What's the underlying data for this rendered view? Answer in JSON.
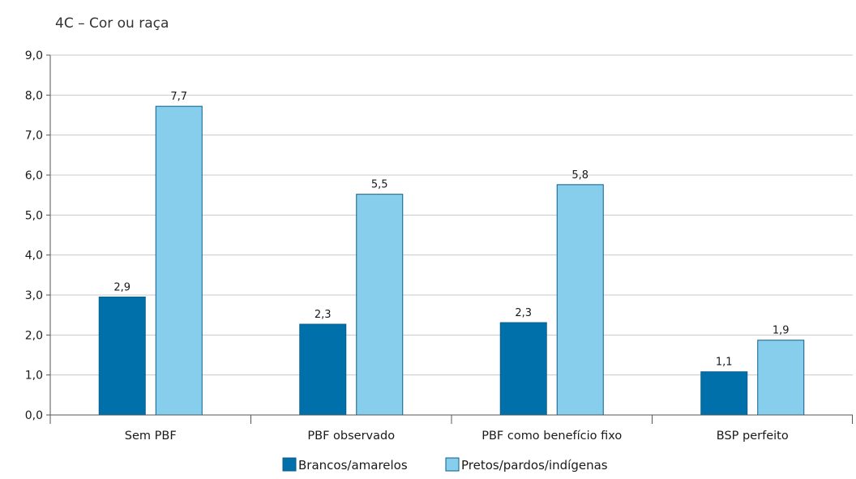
{
  "chart_data": {
    "type": "bar",
    "title": "4C – Cor ou raça",
    "xlabel": "",
    "ylabel": "",
    "ylim": [
      0,
      9
    ],
    "yticks": [
      "0,0",
      "1,0",
      "2,0",
      "3,0",
      "4,0",
      "5,0",
      "6,0",
      "7,0",
      "8,0",
      "9,0"
    ],
    "grid": true,
    "legend_position": "bottom",
    "categories": [
      "Sem PBF",
      "PBF observado",
      "PBF como benefício fixo",
      "BSP perfeito"
    ],
    "series": [
      {
        "name": "Brancos/amarelos",
        "color": "#0070ab",
        "values": [
          2.95,
          2.27,
          2.31,
          1.08
        ],
        "labels": [
          "2,9",
          "2,3",
          "2,3",
          "1,1"
        ]
      },
      {
        "name": "Pretos/pardos/indígenas",
        "color": "#87ceed",
        "values": [
          7.72,
          5.52,
          5.76,
          1.87
        ],
        "labels": [
          "7,7",
          "5,5",
          "5,8",
          "1,9"
        ]
      }
    ]
  }
}
